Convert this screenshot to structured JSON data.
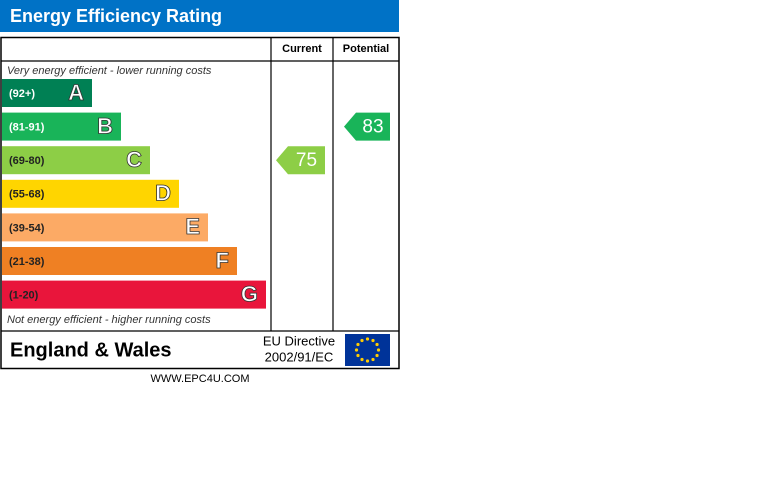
{
  "header": {
    "title": "Energy Efficiency Rating"
  },
  "columns": {
    "current": "Current",
    "potential": "Potential"
  },
  "top_note": "Very energy efficient - lower running costs",
  "bottom_note": "Not energy efficient - higher running costs",
  "bands": [
    {
      "range": "(92+)",
      "letter": "A",
      "color": "#008054"
    },
    {
      "range": "(81-91)",
      "letter": "B",
      "color": "#19b459"
    },
    {
      "range": "(69-80)",
      "letter": "C",
      "color": "#8dce46"
    },
    {
      "range": "(55-68)",
      "letter": "D",
      "color": "#ffd500"
    },
    {
      "range": "(39-54)",
      "letter": "E",
      "color": "#fcaa65"
    },
    {
      "range": "(21-38)",
      "letter": "F",
      "color": "#ef8023"
    },
    {
      "range": "(1-20)",
      "letter": "G",
      "color": "#e9153b"
    }
  ],
  "current": 75,
  "potential": 83,
  "footer": {
    "region": "England & Wales",
    "directive": [
      "EU Directive",
      "2002/91/EC"
    ]
  },
  "website": "WWW.EPC4U.COM"
}
